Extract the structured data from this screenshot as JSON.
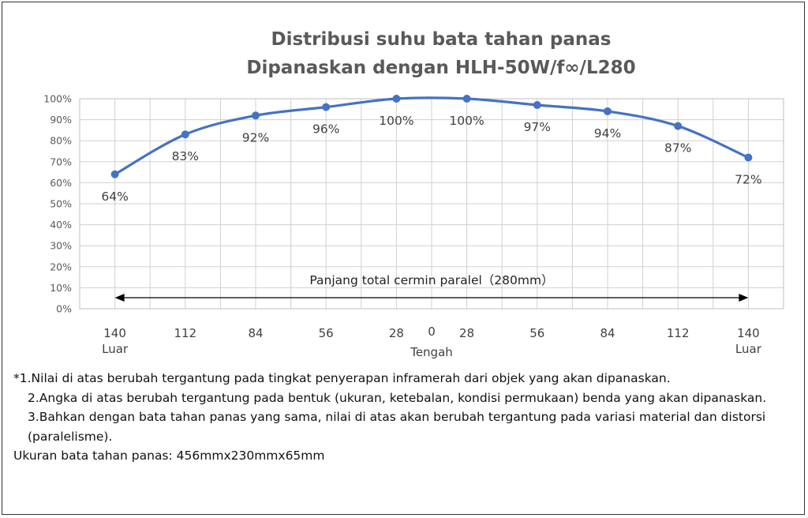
{
  "chart_data": {
    "type": "line",
    "title": [
      "Distribusi suhu bata tahan panas",
      "Dipanaskan dengan HLH-50W/f∞/L280"
    ],
    "categories": [
      "140",
      "112",
      "84",
      "56",
      "28",
      "28",
      "56",
      "84",
      "112",
      "140"
    ],
    "center_tick": "0",
    "sublabels": {
      "left": "Luar",
      "center": "Tengah",
      "right": "Luar"
    },
    "values": [
      64,
      83,
      92,
      96,
      100,
      100,
      97,
      94,
      87,
      72
    ],
    "data_labels": [
      "64%",
      "83%",
      "92%",
      "96%",
      "100%",
      "100%",
      "97%",
      "94%",
      "87%",
      "72%"
    ],
    "y_ticks": [
      "0%",
      "10%",
      "20%",
      "30%",
      "40%",
      "50%",
      "60%",
      "70%",
      "80%",
      "90%",
      "100%"
    ],
    "ylim": [
      0,
      100
    ],
    "grid": true,
    "series_color": "#4472c4",
    "span_annotation": "Panjang total cermin paralel（280mm）"
  },
  "notes": {
    "line1": "*1.Nilai di atas berubah tergantung pada tingkat penyerapan inframerah dari objek yang akan dipanaskan.",
    "line2": "2.Angka di atas berubah tergantung pada bentuk (ukuran, ketebalan, kondisi permukaan) benda yang akan dipanaskan.",
    "line3": "3.Bahkan dengan bata tahan panas yang sama, nilai di atas akan berubah tergantung pada variasi material dan distorsi (paralelisme).",
    "line4": "Ukuran bata tahan panas: 456mmx230mmx65mm"
  }
}
